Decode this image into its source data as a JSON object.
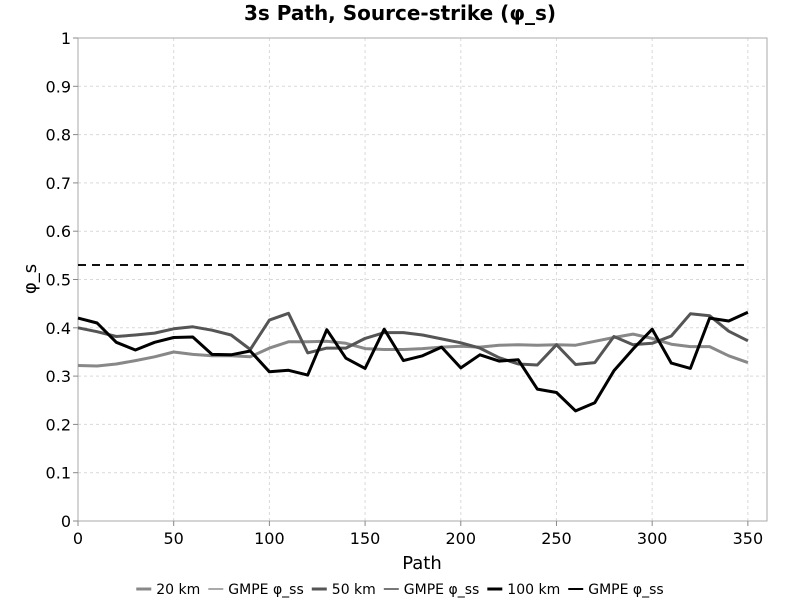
{
  "chart_data": {
    "type": "line",
    "title": "3s Path, Source-strike (φ_s)",
    "xlabel": "Path",
    "ylabel": "φ_s",
    "xlim": [
      0,
      360
    ],
    "ylim": [
      0,
      1
    ],
    "x_ticks": [
      "0",
      "50",
      "100",
      "150",
      "200",
      "250",
      "300",
      "350"
    ],
    "y_ticks": [
      "0",
      "0.1",
      "0.2",
      "0.3",
      "0.4",
      "0.5",
      "0.6",
      "0.7",
      "0.8",
      "0.9",
      "1"
    ],
    "grid": true,
    "legend_position": "bottom",
    "x": [
      0,
      10,
      20,
      30,
      40,
      50,
      60,
      70,
      80,
      90,
      100,
      110,
      120,
      130,
      140,
      150,
      160,
      170,
      180,
      190,
      200,
      210,
      220,
      230,
      240,
      250,
      260,
      270,
      280,
      290,
      300,
      310,
      320,
      330,
      340,
      350
    ],
    "series": [
      {
        "name": "20 km",
        "color": "#888888",
        "values": [
          0.322,
          0.321,
          0.325,
          0.332,
          0.34,
          0.35,
          0.345,
          0.342,
          0.342,
          0.34,
          0.358,
          0.371,
          0.371,
          0.372,
          0.368,
          0.357,
          0.355,
          0.355,
          0.357,
          0.36,
          0.362,
          0.36,
          0.364,
          0.365,
          0.364,
          0.365,
          0.364,
          0.372,
          0.38,
          0.387,
          0.378,
          0.366,
          0.361,
          0.361,
          0.342,
          0.328
        ]
      },
      {
        "name": "GMPE φ_ss",
        "color": "#aaaaaa",
        "style": "dashed",
        "values": [
          0.53,
          0.53,
          0.53,
          0.53,
          0.53,
          0.53,
          0.53,
          0.53,
          0.53,
          0.53,
          0.53,
          0.53,
          0.53,
          0.53,
          0.53,
          0.53,
          0.53,
          0.53,
          0.53,
          0.53,
          0.53,
          0.53,
          0.53,
          0.53,
          0.53,
          0.53,
          0.53,
          0.53,
          0.53,
          0.53,
          0.53,
          0.53,
          0.53,
          0.53,
          0.53,
          0.53
        ]
      },
      {
        "name": "50 km",
        "color": "#555555",
        "values": [
          0.4,
          0.392,
          0.382,
          0.385,
          0.389,
          0.398,
          0.402,
          0.395,
          0.385,
          0.355,
          0.416,
          0.43,
          0.348,
          0.358,
          0.358,
          0.378,
          0.39,
          0.39,
          0.385,
          0.377,
          0.369,
          0.358,
          0.338,
          0.325,
          0.323,
          0.365,
          0.324,
          0.328,
          0.382,
          0.365,
          0.368,
          0.383,
          0.429,
          0.425,
          0.393,
          0.373
        ]
      },
      {
        "name": "GMPE φ_ss",
        "color": "#777777",
        "style": "dashed",
        "values": [
          0.53,
          0.53,
          0.53,
          0.53,
          0.53,
          0.53,
          0.53,
          0.53,
          0.53,
          0.53,
          0.53,
          0.53,
          0.53,
          0.53,
          0.53,
          0.53,
          0.53,
          0.53,
          0.53,
          0.53,
          0.53,
          0.53,
          0.53,
          0.53,
          0.53,
          0.53,
          0.53,
          0.53,
          0.53,
          0.53,
          0.53,
          0.53,
          0.53,
          0.53,
          0.53,
          0.53
        ]
      },
      {
        "name": "100 km",
        "color": "#000000",
        "values": [
          0.42,
          0.41,
          0.37,
          0.354,
          0.37,
          0.38,
          0.381,
          0.345,
          0.344,
          0.352,
          0.309,
          0.312,
          0.302,
          0.396,
          0.337,
          0.316,
          0.397,
          0.332,
          0.342,
          0.36,
          0.317,
          0.344,
          0.331,
          0.334,
          0.273,
          0.266,
          0.228,
          0.245,
          0.311,
          0.356,
          0.397,
          0.327,
          0.316,
          0.42,
          0.414,
          0.432
        ]
      },
      {
        "name": "GMPE φ_ss",
        "color": "#000000",
        "style": "dashed",
        "values": [
          0.53,
          0.53,
          0.53,
          0.53,
          0.53,
          0.53,
          0.53,
          0.53,
          0.53,
          0.53,
          0.53,
          0.53,
          0.53,
          0.53,
          0.53,
          0.53,
          0.53,
          0.53,
          0.53,
          0.53,
          0.53,
          0.53,
          0.53,
          0.53,
          0.53,
          0.53,
          0.53,
          0.53,
          0.53,
          0.53,
          0.53,
          0.53,
          0.53,
          0.53,
          0.53,
          0.53
        ]
      }
    ]
  }
}
